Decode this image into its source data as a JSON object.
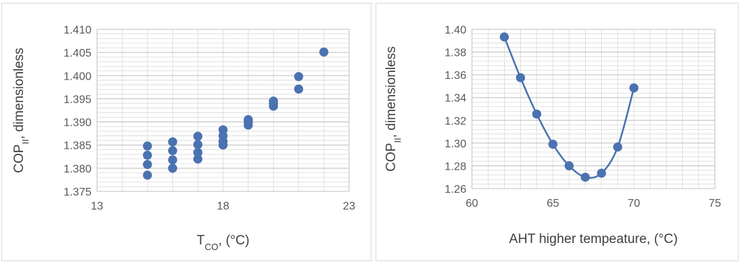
{
  "colors": {
    "series": "#4a72b0",
    "grid": "#d9d9d9",
    "border": "#d9d9d9",
    "text": "#595959"
  },
  "chart_data": [
    {
      "type": "scatter",
      "title": "",
      "xlabel": {
        "main": "T",
        "sub": "CO",
        "suffix": ", (°C)"
      },
      "ylabel": {
        "main": "COP",
        "sub": "II",
        "suffix": ", dimensionless"
      },
      "xlim": [
        13,
        23
      ],
      "ylim": [
        1.375,
        1.41
      ],
      "xticks": [
        "13",
        "18",
        "23"
      ],
      "yticks": [
        "1.375",
        "1.380",
        "1.385",
        "1.390",
        "1.395",
        "1.400",
        "1.405",
        "1.410"
      ],
      "grid": true,
      "minor_grid": true,
      "legend": "none",
      "series": [
        {
          "x": [
            15,
            15,
            15,
            15,
            16,
            16,
            16,
            16,
            17,
            17,
            17,
            17,
            18,
            18,
            18,
            18,
            19,
            19,
            19,
            20,
            20,
            20,
            21,
            21,
            22
          ],
          "y": [
            1.3785,
            1.3808,
            1.3828,
            1.3848,
            1.38,
            1.3818,
            1.3838,
            1.3857,
            1.382,
            1.3834,
            1.3851,
            1.3869,
            1.385,
            1.3858,
            1.387,
            1.3883,
            1.3893,
            1.39,
            1.3905,
            1.3934,
            1.394,
            1.3945,
            1.3971,
            1.3998,
            1.4051
          ]
        }
      ]
    },
    {
      "type": "scatter",
      "title": "",
      "xlabel": {
        "main": "AHT  higher tempeature, (°C)",
        "sub": "",
        "suffix": ""
      },
      "ylabel": {
        "main": "COP",
        "sub": "II",
        "suffix": ", dimensionless"
      },
      "xlim": [
        60,
        75
      ],
      "ylim": [
        1.26,
        1.4
      ],
      "xticks": [
        "60",
        "65",
        "70",
        "75"
      ],
      "yticks": [
        "1.26",
        "1.28",
        "1.30",
        "1.32",
        "1.34",
        "1.36",
        "1.38",
        "1.40"
      ],
      "grid": true,
      "minor_grid": true,
      "legend": "none",
      "smooth_line": true,
      "series": [
        {
          "x": [
            62,
            63,
            64,
            65,
            66,
            67,
            68,
            69,
            70
          ],
          "y": [
            1.3933,
            1.3575,
            1.3255,
            1.299,
            1.28,
            1.27,
            1.2735,
            1.2965,
            1.3485
          ]
        }
      ]
    }
  ]
}
